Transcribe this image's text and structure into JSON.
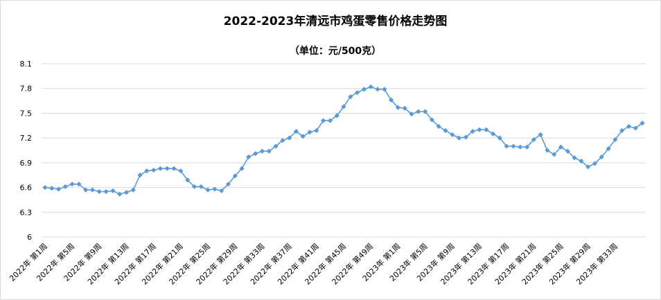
{
  "chart_data": {
    "type": "line",
    "title": "2022-2023年清远市鸡蛋零售价格走势图",
    "subtitle": "（单位：元/500克）",
    "xlabel": "",
    "ylabel": "",
    "ylim": [
      6,
      8.1
    ],
    "yticks": [
      "8.1",
      "7.8",
      "7.5",
      "7.2",
      "6.9",
      "6.6",
      "6.3",
      "6"
    ],
    "grid": "horizontal",
    "legend": "none",
    "colors": {
      "line": "#5B9BD5",
      "grid": "#D9D9D9",
      "text": "#000000"
    },
    "x_tick_labels": [
      "2022年 第1周",
      "2022年 第5周",
      "2022年 第9周",
      "2022年 第13周",
      "2022年 第17周",
      "2022年 第21周",
      "2022年 第25周",
      "2022年 第29周",
      "2022年 第33周",
      "2022年 第37周",
      "2022年 第41周",
      "2022年 第45周",
      "2022年 第49周",
      "2023年 第1周",
      "2023年 第5周",
      "2023年 第9周",
      "2023年 第13周",
      "2023年 第17周",
      "2023年 第21周",
      "2023年 第25周",
      "2023年 第29周",
      "2023年 第33周"
    ],
    "series": [
      {
        "values": [
          6.6,
          6.59,
          6.58,
          6.61,
          6.64,
          6.64,
          6.57,
          6.57,
          6.55,
          6.55,
          6.56,
          6.52,
          6.54,
          6.57,
          6.75,
          6.8,
          6.81,
          6.83,
          6.83,
          6.83,
          6.8,
          6.69,
          6.61,
          6.61,
          6.57,
          6.58,
          6.56,
          6.64,
          6.74,
          6.83,
          6.97,
          7.01,
          7.04,
          7.04,
          7.1,
          7.17,
          7.2,
          7.28,
          7.22,
          7.27,
          7.29,
          7.41,
          7.41,
          7.47,
          7.58,
          7.7,
          7.75,
          7.79,
          7.82,
          7.79,
          7.79,
          7.66,
          7.57,
          7.56,
          7.49,
          7.52,
          7.52,
          7.42,
          7.34,
          7.29,
          7.24,
          7.2,
          7.21,
          7.28,
          7.3,
          7.3,
          7.25,
          7.2,
          7.1,
          7.1,
          7.09,
          7.09,
          7.18,
          7.24,
          7.05,
          7.0,
          7.09,
          7.04,
          6.96,
          6.92,
          6.85,
          6.89,
          6.97,
          7.07,
          7.18,
          7.29,
          7.34,
          7.32,
          7.38
        ]
      }
    ]
  }
}
